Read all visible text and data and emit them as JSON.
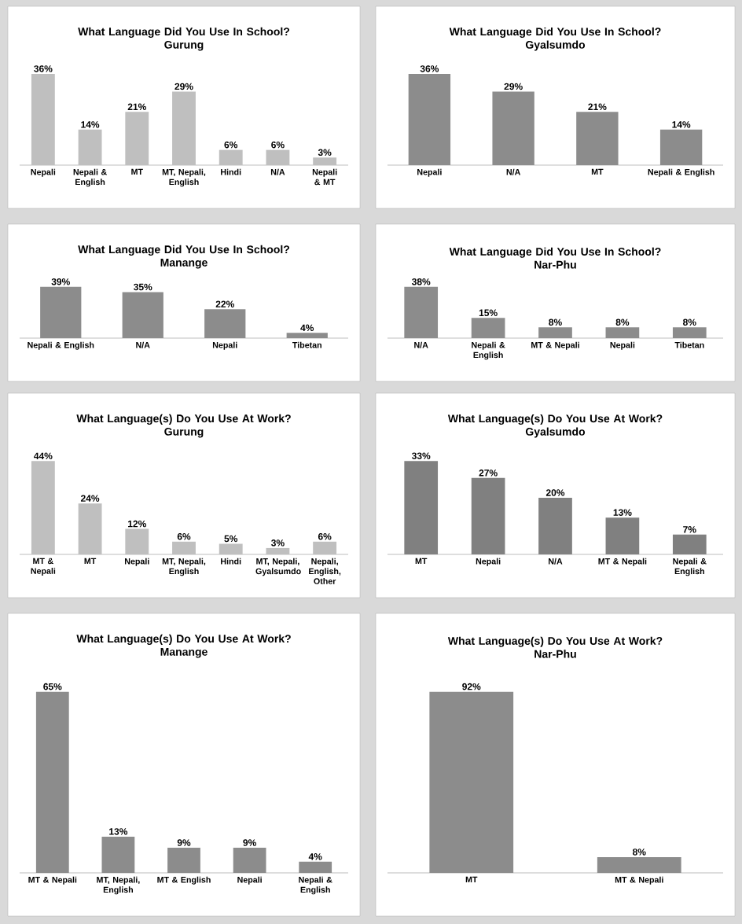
{
  "chart_data": [
    {
      "type": "bar",
      "title": "What Language Did You Use In School?",
      "subtitle": "Gurung",
      "categories": [
        "Nepali",
        "Nepali & English",
        "MT",
        "MT, Nepali, English",
        "Hindi",
        "N/A",
        "Nepali & MT"
      ],
      "values": [
        36,
        14,
        21,
        29,
        6,
        6,
        3
      ],
      "value_labels": [
        "36%",
        "14%",
        "21%",
        "29%",
        "6%",
        "6%",
        "3%"
      ],
      "color": "#bfbfbf"
    },
    {
      "type": "bar",
      "title": "What Language Did You Use In School?",
      "subtitle": "Gyalsumdo",
      "categories": [
        "Nepali",
        "N/A",
        "MT",
        "Nepali & English"
      ],
      "values": [
        36,
        29,
        21,
        14
      ],
      "value_labels": [
        "36%",
        "29%",
        "21%",
        "14%"
      ],
      "color": "#8c8c8c"
    },
    {
      "type": "bar",
      "title": "What Language Did You Use In School?",
      "subtitle": "Manange",
      "categories": [
        "Nepali & English",
        "N/A",
        "Nepali",
        "Tibetan"
      ],
      "values": [
        39,
        35,
        22,
        4
      ],
      "value_labels": [
        "39%",
        "35%",
        "22%",
        "4%"
      ],
      "color": "#8c8c8c"
    },
    {
      "type": "bar",
      "title": "What Language Did You Use In School?",
      "subtitle": "Nar-Phu",
      "categories": [
        "N/A",
        "Nepali & English",
        "MT & Nepali",
        "Nepali",
        "Tibetan"
      ],
      "values": [
        38,
        15,
        8,
        8,
        8
      ],
      "value_labels": [
        "38%",
        "15%",
        "8%",
        "8%",
        "8%"
      ],
      "color": "#8c8c8c"
    },
    {
      "type": "bar",
      "title": "What Language(s) Do You Use At Work?",
      "subtitle": "Gurung",
      "categories": [
        "MT & Nepali",
        "MT",
        "Nepali",
        "MT, Nepali, English",
        "Hindi",
        "MT, Nepali, Gyalsumdo",
        "Nepali, English, Other"
      ],
      "values": [
        44,
        24,
        12,
        6,
        5,
        3,
        6
      ],
      "value_labels": [
        "44%",
        "24%",
        "12%",
        "6%",
        "5%",
        "3%",
        "6%"
      ],
      "color": "#bfbfbf"
    },
    {
      "type": "bar",
      "title": "What Language(s) Do You Use At Work?",
      "subtitle": "Gyalsumdo",
      "categories": [
        "MT",
        "Nepali",
        "N/A",
        "MT & Nepali",
        "Nepali & English"
      ],
      "values": [
        33,
        27,
        20,
        13,
        7
      ],
      "value_labels": [
        "33%",
        "27%",
        "20%",
        "13%",
        "7%"
      ],
      "color": "#808080"
    },
    {
      "type": "bar",
      "title": "What Language(s) Do You Use At Work?",
      "subtitle": "Manange",
      "categories": [
        "MT & Nepali",
        "MT, Nepali, English",
        "MT & English",
        "Nepali",
        "Nepali & English"
      ],
      "values": [
        65,
        13,
        9,
        9,
        4
      ],
      "value_labels": [
        "65%",
        "13%",
        "9%",
        "9%",
        "4%"
      ],
      "color": "#8c8c8c"
    },
    {
      "type": "bar",
      "title": "What Language(s) Do You Use At Work?",
      "subtitle": "Nar-Phu",
      "categories": [
        "MT",
        "MT & Nepali"
      ],
      "values": [
        92,
        8
      ],
      "value_labels": [
        "92%",
        "8%"
      ],
      "color": "#8c8c8c"
    }
  ]
}
